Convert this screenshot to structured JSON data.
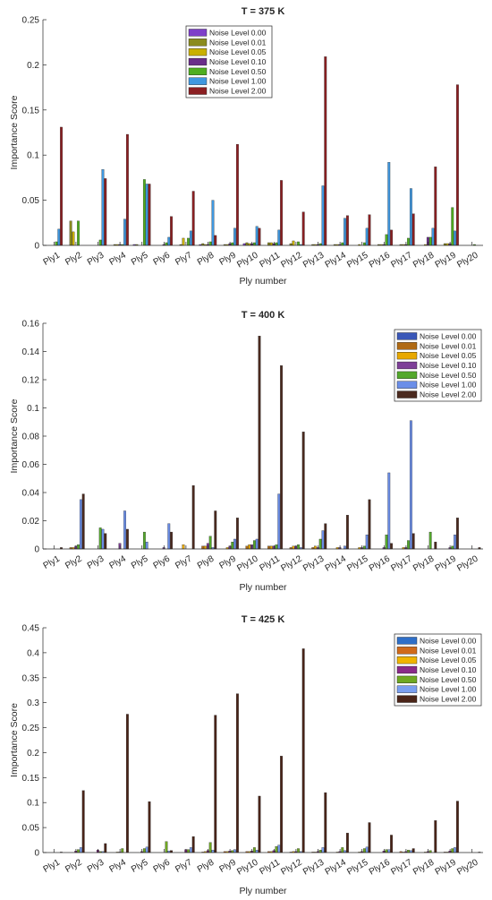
{
  "chart_data": [
    {
      "type": "bar",
      "title": "T = 375 K",
      "xlabel": "Ply number",
      "ylabel": "Importance Score",
      "ylim": [
        0,
        0.25
      ],
      "yticks": [
        "0",
        "0.05",
        "0.1",
        "0.15",
        "0.2",
        "0.25"
      ],
      "legend_position": "top-center",
      "categories": [
        "Ply1",
        "Ply2",
        "Ply3",
        "Ply4",
        "Ply5",
        "Ply6",
        "Ply7",
        "Ply8",
        "Ply9",
        "Ply10",
        "Ply11",
        "Ply12",
        "Ply13",
        "Ply14",
        "Ply15",
        "Ply16",
        "Ply17",
        "Ply18",
        "Ply19",
        "Ply20"
      ],
      "series": [
        {
          "name": "Noise Level 0.00",
          "color": "#7e3fc9",
          "values": [
            0,
            0,
            0,
            0,
            0.001,
            0,
            0,
            0.001,
            0,
            0.002,
            0,
            0,
            0,
            0,
            0,
            0,
            0,
            0,
            0,
            0
          ]
        },
        {
          "name": "Noise Level 0.01",
          "color": "#8a8a1e",
          "values": [
            0,
            0.027,
            0,
            0.001,
            0.001,
            0,
            0.001,
            0.002,
            0.001,
            0.003,
            0.003,
            0.002,
            0.001,
            0.001,
            0,
            0.001,
            0.001,
            0,
            0.002,
            0
          ]
        },
        {
          "name": "Noise Level 0.05",
          "color": "#c9b000",
          "values": [
            0,
            0.015,
            0,
            0.001,
            0,
            0,
            0.008,
            0.001,
            0.001,
            0.002,
            0.003,
            0.005,
            0.001,
            0.001,
            0.001,
            0.001,
            0.001,
            0.001,
            0.002,
            0
          ]
        },
        {
          "name": "Noise Level 0.10",
          "color": "#6a2d8a",
          "values": [
            0,
            0,
            0,
            0.001,
            0,
            0.001,
            0,
            0.001,
            0.002,
            0.002,
            0.002,
            0,
            0.001,
            0.001,
            0,
            0.001,
            0.001,
            0.009,
            0.002,
            0
          ]
        },
        {
          "name": "Noise Level 0.50",
          "color": "#4fae1f",
          "values": [
            0.004,
            0.027,
            0.006,
            0.001,
            0.073,
            0.003,
            0.008,
            0.004,
            0.003,
            0.003,
            0.003,
            0.004,
            0.002,
            0.003,
            0.003,
            0.012,
            0.008,
            0.009,
            0.042,
            0.001
          ]
        },
        {
          "name": "Noise Level 1.00",
          "color": "#3f98e0",
          "values": [
            0.018,
            0,
            0.084,
            0.029,
            0.068,
            0.009,
            0.016,
            0.05,
            0.019,
            0.021,
            0.017,
            0.001,
            0.066,
            0.03,
            0.019,
            0.092,
            0.063,
            0.019,
            0.016,
            0
          ]
        },
        {
          "name": "Noise Level 2.00",
          "color": "#8b1f22",
          "values": [
            0.131,
            0,
            0.074,
            0.123,
            0.068,
            0.032,
            0.06,
            0.011,
            0.112,
            0.019,
            0.072,
            0.037,
            0.209,
            0.033,
            0.034,
            0.017,
            0.035,
            0.087,
            0.178,
            0
          ]
        }
      ]
    },
    {
      "type": "bar",
      "title": "T = 400 K",
      "xlabel": "Ply number",
      "ylabel": "Importance Score",
      "ylim": [
        0,
        0.16
      ],
      "yticks": [
        "0",
        "0.02",
        "0.04",
        "0.06",
        "0.08",
        "0.1",
        "0.12",
        "0.14",
        "0.16"
      ],
      "legend_position": "top-right",
      "categories": [
        "Ply1",
        "Ply2",
        "Ply3",
        "Ply4",
        "Ply5",
        "Ply6",
        "Ply7",
        "Ply8",
        "Ply9",
        "Ply10",
        "Ply11",
        "Ply12",
        "Ply13",
        "Ply14",
        "Ply15",
        "Ply16",
        "Ply17",
        "Ply18",
        "Ply19",
        "Ply20"
      ],
      "series": [
        {
          "name": "Noise Level 0.00",
          "color": "#3a57b8",
          "values": [
            0,
            0,
            0,
            0,
            0,
            0,
            0,
            0,
            0,
            0,
            0,
            0,
            0,
            0,
            0,
            0,
            0,
            0,
            0,
            0
          ]
        },
        {
          "name": "Noise Level 0.01",
          "color": "#b06a14",
          "values": [
            0,
            0.001,
            0,
            0,
            0,
            0,
            0,
            0.002,
            0,
            0.002,
            0.002,
            0.001,
            0.001,
            0,
            0,
            0,
            0,
            0,
            0,
            0
          ]
        },
        {
          "name": "Noise Level 0.05",
          "color": "#e8a800",
          "values": [
            0,
            0.001,
            0,
            0,
            0,
            0,
            0.003,
            0.002,
            0.001,
            0.003,
            0.002,
            0.002,
            0.002,
            0.001,
            0.001,
            0,
            0.001,
            0,
            0,
            0
          ]
        },
        {
          "name": "Noise Level 0.10",
          "color": "#7e3f98",
          "values": [
            0,
            0.002,
            0,
            0.004,
            0,
            0.001,
            0,
            0.004,
            0.002,
            0.003,
            0.002,
            0.002,
            0.001,
            0.001,
            0.001,
            0.001,
            0.001,
            0,
            0.001,
            0
          ]
        },
        {
          "name": "Noise Level 0.50",
          "color": "#53a82b",
          "values": [
            0,
            0.003,
            0.015,
            0,
            0.012,
            0,
            0,
            0.009,
            0.005,
            0.006,
            0.003,
            0.003,
            0.007,
            0,
            0.002,
            0.01,
            0.006,
            0.012,
            0.002,
            0
          ]
        },
        {
          "name": "Noise Level 1.00",
          "color": "#6b8ee8",
          "values": [
            0,
            0.035,
            0.014,
            0.027,
            0.005,
            0.018,
            0,
            0.001,
            0.007,
            0.007,
            0.039,
            0.001,
            0.013,
            0.002,
            0.01,
            0.054,
            0.091,
            0,
            0.01,
            0
          ]
        },
        {
          "name": "Noise Level 2.00",
          "color": "#4b2a1f",
          "values": [
            0.001,
            0.039,
            0.011,
            0.014,
            0,
            0.012,
            0.045,
            0.027,
            0.022,
            0.151,
            0.13,
            0.083,
            0.018,
            0.024,
            0.035,
            0.004,
            0.011,
            0.005,
            0.022,
            0.001
          ]
        }
      ]
    },
    {
      "type": "bar",
      "title": "T = 425 K",
      "xlabel": "Ply number",
      "ylabel": "Importance Score",
      "ylim": [
        0,
        0.45
      ],
      "yticks": [
        "0",
        "0.05",
        "0.1",
        "0.15",
        "0.2",
        "0.25",
        "0.3",
        "0.35",
        "0.4",
        "0.45"
      ],
      "legend_position": "top-right",
      "categories": [
        "Ply1",
        "Ply2",
        "Ply3",
        "Ply4",
        "Ply5",
        "Ply6",
        "Ply7",
        "Ply8",
        "Ply9",
        "Ply10",
        "Ply11",
        "Ply12",
        "Ply13",
        "Ply14",
        "Ply15",
        "Ply16",
        "Ply17",
        "Ply18",
        "Ply19",
        "Ply20"
      ],
      "series": [
        {
          "name": "Noise Level 0.00",
          "color": "#2f6fc8",
          "values": [
            0,
            0,
            0,
            0,
            0,
            0,
            0,
            0,
            0,
            0,
            0,
            0,
            0,
            0,
            0,
            0,
            0,
            0,
            0,
            0
          ]
        },
        {
          "name": "Noise Level 0.01",
          "color": "#d06a1a",
          "values": [
            0,
            0,
            0,
            0,
            0,
            0,
            0,
            0.001,
            0.002,
            0.002,
            0.002,
            0.001,
            0.001,
            0,
            0,
            0,
            0.002,
            0,
            0.001,
            0
          ]
        },
        {
          "name": "Noise Level 0.05",
          "color": "#f0b400",
          "values": [
            0,
            0,
            0,
            0.001,
            0,
            0,
            0,
            0.002,
            0.002,
            0.002,
            0.002,
            0.002,
            0.001,
            0.001,
            0.001,
            0,
            0.001,
            0.001,
            0.001,
            0
          ]
        },
        {
          "name": "Noise Level 0.10",
          "color": "#8a2a8a",
          "values": [
            0,
            0.003,
            0.005,
            0.001,
            0.002,
            0,
            0.006,
            0.004,
            0.003,
            0.003,
            0.004,
            0.002,
            0.002,
            0.002,
            0.002,
            0.003,
            0.002,
            0.002,
            0.003,
            0
          ]
        },
        {
          "name": "Noise Level 0.50",
          "color": "#6fa822",
          "values": [
            0,
            0.006,
            0.002,
            0.008,
            0.008,
            0.022,
            0.006,
            0.02,
            0.004,
            0.01,
            0.012,
            0.008,
            0.005,
            0.01,
            0.008,
            0.006,
            0.005,
            0.004,
            0.008,
            0
          ]
        },
        {
          "name": "Noise Level 1.00",
          "color": "#7a9ff0",
          "values": [
            0,
            0.01,
            0.002,
            0,
            0.011,
            0.003,
            0.01,
            0.005,
            0.006,
            0.005,
            0.015,
            0.002,
            0.01,
            0.004,
            0.011,
            0.006,
            0.004,
            0,
            0.01,
            0
          ]
        },
        {
          "name": "Noise Level 2.00",
          "color": "#4a2418",
          "values": [
            0.001,
            0.124,
            0.018,
            0.277,
            0.102,
            0.004,
            0.032,
            0.275,
            0.318,
            0.113,
            0.193,
            0.408,
            0.12,
            0.039,
            0.06,
            0.035,
            0.008,
            0.064,
            0.103,
            0.001
          ]
        }
      ]
    }
  ]
}
